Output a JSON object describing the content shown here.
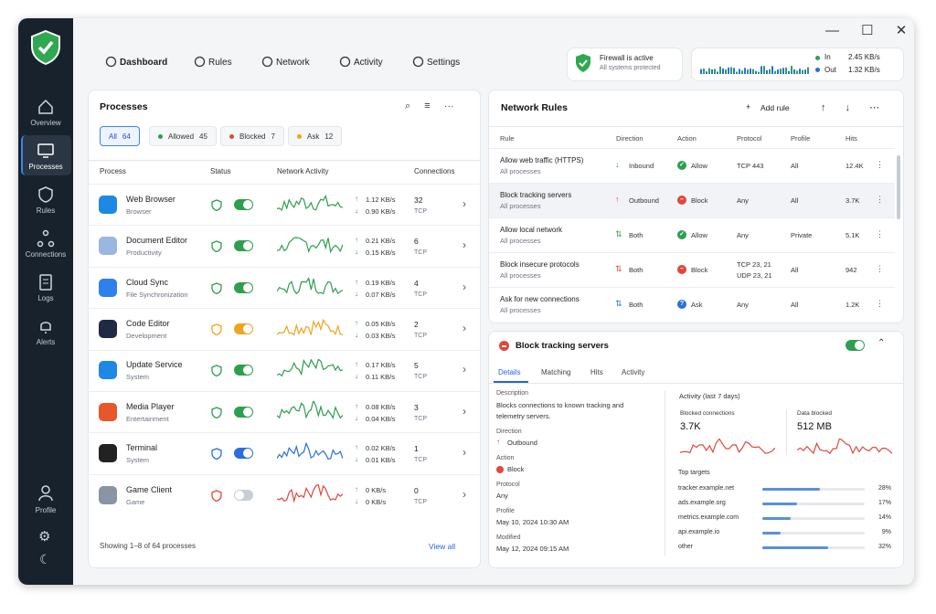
{
  "sidebar": {
    "items": [
      "Overview",
      "Processes",
      "Rules",
      "Connections",
      "Logs",
      "Alerts"
    ],
    "active": 1,
    "profile": "Profile"
  },
  "header": {
    "tabs": [
      "Dashboard",
      "Rules",
      "Network",
      "Activity",
      "Settings"
    ],
    "active": 0
  },
  "status": {
    "title": "Firewall is active",
    "subtitle": "All systems protected"
  },
  "traffic": {
    "in_label": "In",
    "in_value": "2.45 KB/s",
    "out_label": "Out",
    "out_value": "1.32 KB/s"
  },
  "processes": {
    "title": "Processes",
    "filters": [
      {
        "label": "All",
        "count": 64
      },
      {
        "label": "Allowed",
        "count": 45,
        "color": "#2e9e4f"
      },
      {
        "label": "Blocked",
        "count": 7,
        "color": "#e0473a"
      },
      {
        "label": "Ask",
        "count": 12,
        "color": "#f0a41c"
      }
    ],
    "columns": [
      "Process",
      "Status",
      "Network Activity",
      "Connections"
    ],
    "rows": [
      {
        "name": "Web Browser",
        "category": "Browser",
        "up": "1.12 KB/s",
        "down": "0.90 KB/s",
        "connections": 32,
        "protocol": "TCP",
        "color": "#2e9e4f",
        "on": true
      },
      {
        "name": "Document Editor",
        "category": "Productivity",
        "up": "0.21 KB/s",
        "down": "0.15 KB/s",
        "connections": 6,
        "protocol": "TCP",
        "color": "#2e9e4f",
        "on": true
      },
      {
        "name": "Cloud Sync",
        "category": "File Synchronization",
        "up": "0.19 KB/s",
        "down": "0.07 KB/s",
        "connections": 4,
        "protocol": "TCP",
        "color": "#2e9e4f",
        "on": true
      },
      {
        "name": "Code Editor",
        "category": "Development",
        "up": "0.05 KB/s",
        "down": "0.03 KB/s",
        "connections": 2,
        "protocol": "TCP",
        "color": "#f0a41c",
        "on": true
      },
      {
        "name": "Update Service",
        "category": "System",
        "up": "0.17 KB/s",
        "down": "0.11 KB/s",
        "connections": 5,
        "protocol": "TCP",
        "color": "#2e9e4f",
        "on": true
      },
      {
        "name": "Media Player",
        "category": "Entertainment",
        "up": "0.08 KB/s",
        "down": "0.04 KB/s",
        "connections": 3,
        "protocol": "TCP",
        "color": "#2e9e4f",
        "on": true
      },
      {
        "name": "Terminal",
        "category": "System",
        "up": "0.02 KB/s",
        "down": "0.01 KB/s",
        "connections": 1,
        "protocol": "TCP",
        "color": "#2a6fdb",
        "on": true
      },
      {
        "name": "Game Client",
        "category": "Game",
        "up": "0 KB/s",
        "down": "0 KB/s",
        "connections": 0,
        "protocol": "TCP",
        "color": "#e0473a",
        "on": false
      }
    ],
    "footer": "Showing 1–8 of 64 processes",
    "view_all": "View all"
  },
  "rules": {
    "title": "Network Rules",
    "add": "Add rule",
    "columns": [
      "Rule",
      "Direction",
      "Action",
      "Protocol",
      "Profile",
      "Hits"
    ],
    "rows": [
      {
        "name": "Allow web traffic (HTTPS)",
        "scope": "All processes",
        "direction": "Inbound",
        "direction_color": "#2e9e4f",
        "action": "Allow",
        "action_color": "#2e9e4f",
        "protocol": [
          "TCP 443"
        ],
        "profile": "All",
        "hits": "12.4K"
      },
      {
        "name": "Block tracking servers",
        "scope": "All processes",
        "direction": "Outbound",
        "direction_color": "#e0473a",
        "action": "Block",
        "action_color": "#e0473a",
        "protocol": [
          "Any"
        ],
        "profile": "All",
        "hits": "3.7K"
      },
      {
        "name": "Allow local network",
        "scope": "All processes",
        "direction": "Both",
        "direction_color": "#2e9e4f",
        "action": "Allow",
        "action_color": "#2e9e4f",
        "protocol": [
          "Any"
        ],
        "profile": "Private",
        "hits": "5.1K"
      },
      {
        "name": "Block insecure protocols",
        "scope": "All processes",
        "direction": "Both",
        "direction_color": "#e0473a",
        "action": "Block",
        "action_color": "#e0473a",
        "protocol": [
          "TCP 23, 21",
          "UDP 23, 21"
        ],
        "profile": "All",
        "hits": "942"
      },
      {
        "name": "Ask for new connections",
        "scope": "All processes",
        "direction": "Both",
        "direction_color": "#2a6fdb",
        "action": "Ask",
        "action_color": "#2a6fdb",
        "protocol": [
          "Any"
        ],
        "profile": "All",
        "hits": "1.2K"
      }
    ]
  },
  "detail": {
    "title": "Block tracking servers",
    "tabs": [
      "Details",
      "Matching",
      "Hits",
      "Activity"
    ],
    "fields": [
      {
        "label": "Description",
        "value": "Blocks connections to known tracking and telemetry servers."
      },
      {
        "label": "Direction",
        "value": "Outbound"
      },
      {
        "label": "Action",
        "value": "Block"
      },
      {
        "label": "Protocol",
        "value": "Any"
      },
      {
        "label": "Profile",
        "value": "May 10, 2024 10:30 AM"
      },
      {
        "label": "Modified",
        "value": "May 12, 2024 09:15 AM"
      }
    ],
    "activity_title": "Activity (last 7 days)",
    "stats": [
      {
        "label": "Blocked connections",
        "value": "3.7K"
      },
      {
        "label": "Data blocked",
        "value": "512 MB"
      }
    ],
    "targets_title": "Top targets",
    "targets": [
      {
        "name": "tracker.example.net",
        "value": 28,
        "label": "28%"
      },
      {
        "name": "ads.example.org",
        "value": 17,
        "label": "17%"
      },
      {
        "name": "metrics.example.com",
        "value": 14,
        "label": "14%"
      },
      {
        "name": "api.example.io",
        "value": 9,
        "label": "9%"
      },
      {
        "name": "other",
        "value": 32,
        "label": "32%"
      }
    ]
  }
}
